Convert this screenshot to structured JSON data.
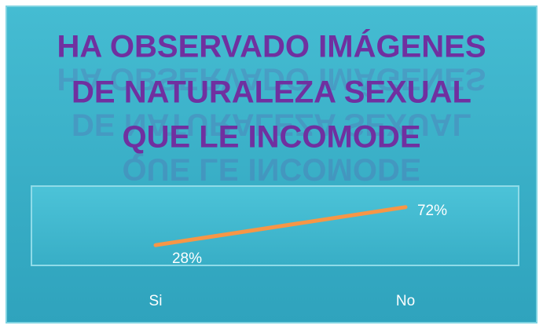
{
  "chart_data": {
    "type": "line",
    "title": [
      "HA OBSERVADO IMÁGENES",
      "DE NATURALEZA SEXUAL",
      "QUE LE INCOMODE"
    ],
    "categories": [
      "Si",
      "No"
    ],
    "series": [
      {
        "name": "Serie 1",
        "color": "#f79646",
        "values": [
          28,
          72
        ],
        "value_labels": [
          "28%",
          "72%"
        ]
      }
    ],
    "ylim": [
      0,
      100
    ]
  }
}
